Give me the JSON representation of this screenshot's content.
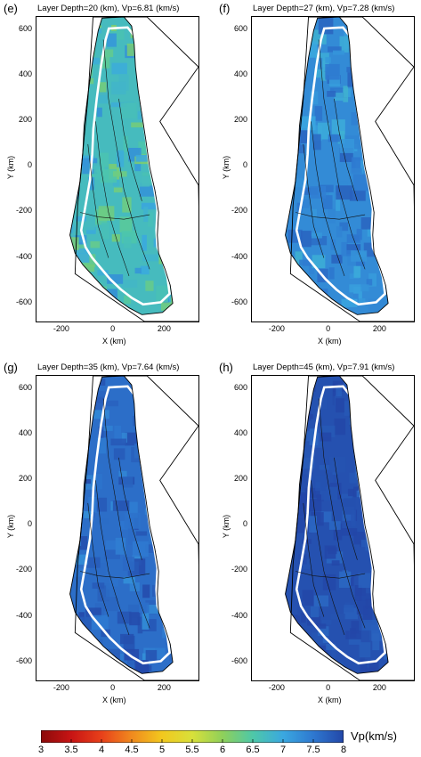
{
  "chart_data": [
    {
      "type": "heatmap",
      "panel_label": "(e)",
      "title": "Layer Depth=20 (km), Vp=6.81 (km/s)",
      "layer_depth_km": 20,
      "mean_vp_kms": 6.81,
      "xlabel": "X (km)",
      "ylabel": "Y (km)",
      "xlim": [
        -300,
        330
      ],
      "ylim": [
        -680,
        660
      ],
      "xticks": [
        "-200",
        "0",
        "200"
      ],
      "yticks": [
        "600",
        "400",
        "200",
        "0",
        "-200",
        "-400",
        "-600"
      ],
      "dominant_vp": 6.7
    },
    {
      "type": "heatmap",
      "panel_label": "(f)",
      "title": "Layer Depth=27 (km), Vp=7.28 (km/s)",
      "layer_depth_km": 27,
      "mean_vp_kms": 7.28,
      "xlabel": "X (km)",
      "ylabel": "Y (km)",
      "xlim": [
        -300,
        330
      ],
      "ylim": [
        -680,
        660
      ],
      "xticks": [
        "-200",
        "0",
        "200"
      ],
      "yticks": [
        "600",
        "400",
        "200",
        "0",
        "-200",
        "-400",
        "-600"
      ],
      "dominant_vp": 7.3
    },
    {
      "type": "heatmap",
      "panel_label": "(g)",
      "title": "Layer Depth=35 (km), Vp=7.64 (km/s)",
      "layer_depth_km": 35,
      "mean_vp_kms": 7.64,
      "xlabel": "X (km)",
      "ylabel": "Y (km)",
      "xlim": [
        -300,
        330
      ],
      "ylim": [
        -680,
        660
      ],
      "xticks": [
        "-200",
        "0",
        "200"
      ],
      "yticks": [
        "600",
        "400",
        "200",
        "0",
        "-200",
        "-400",
        "-600"
      ],
      "dominant_vp": 7.6
    },
    {
      "type": "heatmap",
      "panel_label": "(h)",
      "title": "Layer Depth=45 (km), Vp=7.91 (km/s)",
      "layer_depth_km": 45,
      "mean_vp_kms": 7.91,
      "xlabel": "X (km)",
      "ylabel": "Y (km)",
      "xlim": [
        -300,
        330
      ],
      "ylim": [
        -680,
        660
      ],
      "xticks": [
        "-200",
        "0",
        "200"
      ],
      "yticks": [
        "600",
        "400",
        "200",
        "0",
        "-200",
        "-400",
        "-600"
      ],
      "dominant_vp": 7.9
    }
  ],
  "colorbar": {
    "label": "Vp(km/s)",
    "range": [
      3,
      8
    ],
    "ticks": [
      "3",
      "3.5",
      "4",
      "4.5",
      "5",
      "5.5",
      "6",
      "6.5",
      "7",
      "7.5",
      "8"
    ],
    "colors": [
      "#8b0a0a",
      "#c81414",
      "#e8401a",
      "#f08a1e",
      "#f2c81e",
      "#d8e03a",
      "#8fd05a",
      "#4ec8a8",
      "#3aa8e0",
      "#2e78d0",
      "#2347a8"
    ]
  }
}
